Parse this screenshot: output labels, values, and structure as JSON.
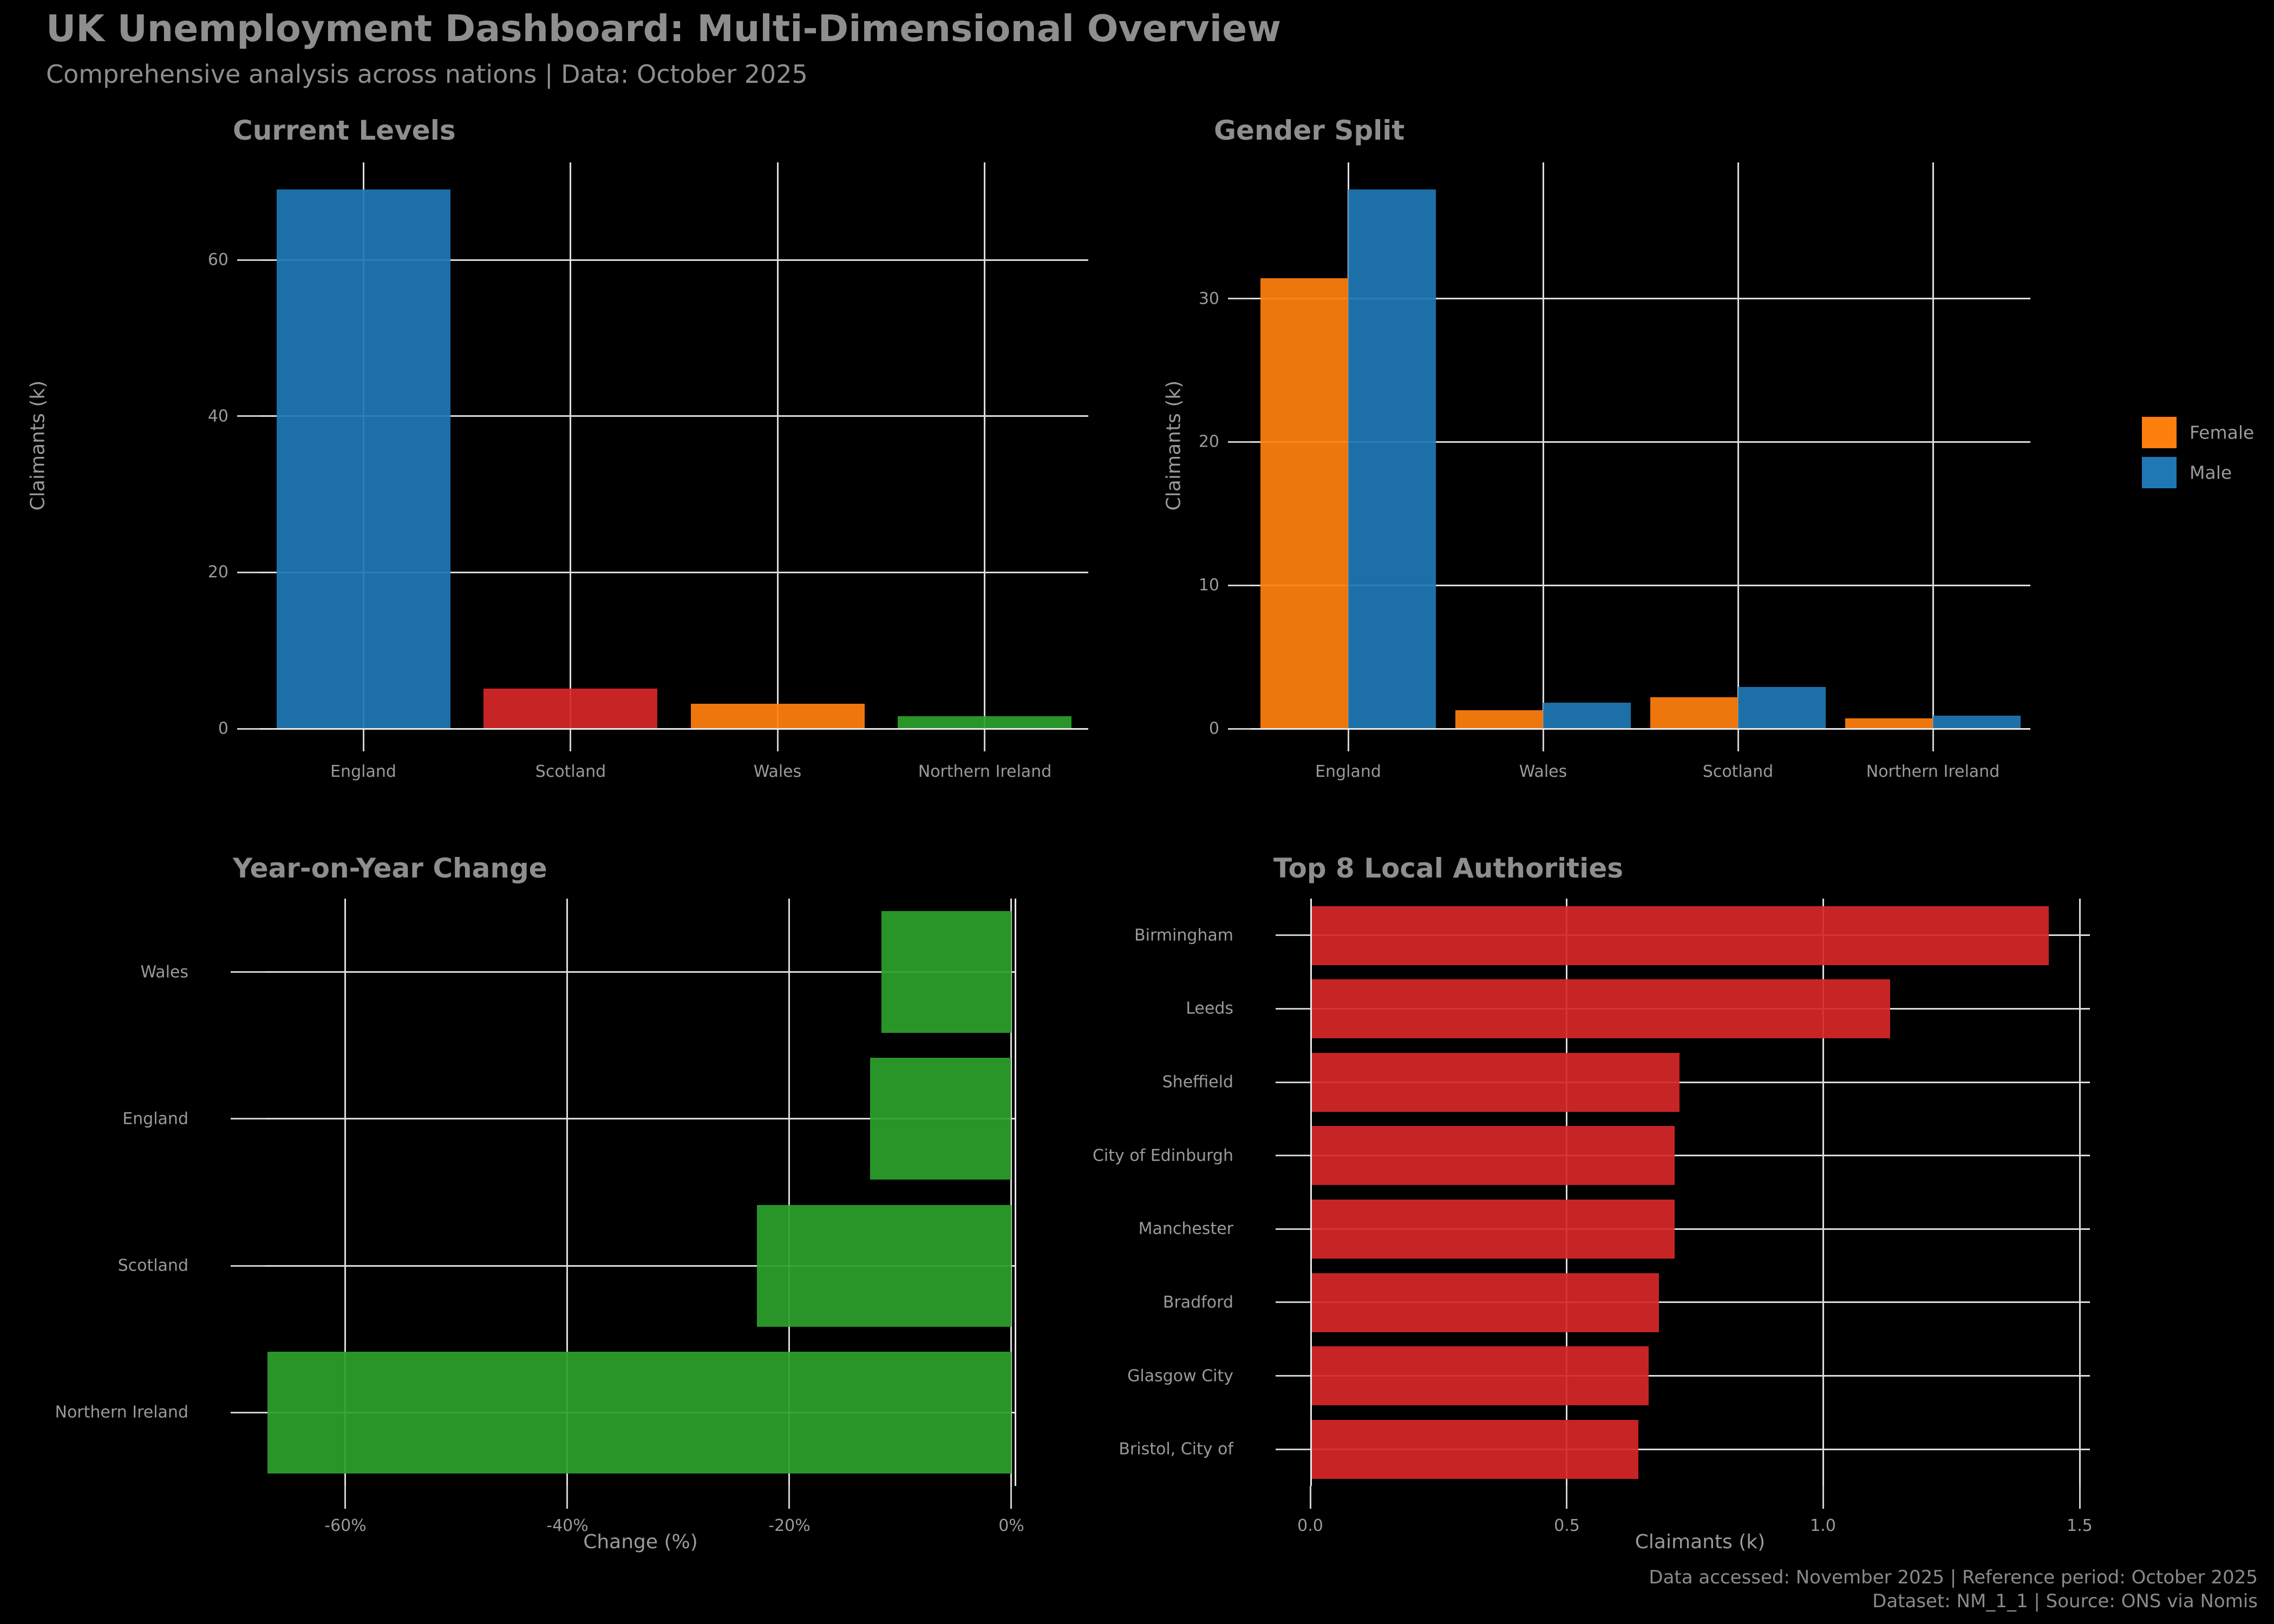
{
  "header": {
    "title": "UK Unemployment Dashboard: Multi-Dimensional Overview",
    "subtitle": "Comprehensive analysis across nations | Data: October 2025"
  },
  "footer": {
    "line1": "Data accessed: November 2025 | Reference period: October 2025",
    "line2": "Dataset: NM_1_1 | Source: ONS via Nomis"
  },
  "colors": {
    "background": "#000000",
    "text": "#8e8e8e",
    "grid": "#dcdcdc",
    "blue": "#1f77b4",
    "orange": "#ff7f0e",
    "red": "#d62728",
    "green": "#2ca02c"
  },
  "legend": {
    "items": [
      {
        "label": "Female",
        "color": "#ff7f0e"
      },
      {
        "label": "Male",
        "color": "#1f77b4"
      }
    ],
    "position": "right"
  },
  "chart_data": [
    {
      "id": "current-levels",
      "type": "bar",
      "title": "Current Levels",
      "ylabel": "Claimants (k)",
      "categories": [
        "England",
        "Scotland",
        "Wales",
        "Northern Ireland"
      ],
      "values": [
        69.0,
        5.1,
        3.2,
        1.6
      ],
      "bar_colors": [
        "#1f77b4",
        "#d62728",
        "#ff7f0e",
        "#2ca02c"
      ],
      "yticks": [
        0,
        20,
        40,
        60
      ],
      "ylim": [
        0,
        72.5
      ],
      "grid": true
    },
    {
      "id": "gender-split",
      "type": "bar",
      "title": "Gender Split",
      "ylabel": "Claimants (k)",
      "categories": [
        "England",
        "Wales",
        "Scotland",
        "Northern Ireland"
      ],
      "series": [
        {
          "name": "Female",
          "color": "#ff7f0e",
          "values": [
            31.4,
            1.3,
            2.2,
            0.7
          ]
        },
        {
          "name": "Male",
          "color": "#1f77b4",
          "values": [
            37.6,
            1.8,
            2.9,
            0.9
          ]
        }
      ],
      "yticks": [
        0,
        10,
        20,
        30
      ],
      "ylim": [
        0,
        39.5
      ],
      "legend_position": "right",
      "grid": true
    },
    {
      "id": "yoy-change",
      "type": "barh",
      "title": "Year-on-Year Change",
      "xlabel": "Change (%)",
      "categories": [
        "Wales",
        "England",
        "Scotland",
        "Northern Ireland"
      ],
      "values": [
        -11.7,
        -12.7,
        -22.9,
        -67.0
      ],
      "bar_color": "#2ca02c",
      "xticks": [
        {
          "v": -60,
          "label": "-60%"
        },
        {
          "v": -40,
          "label": "-40%"
        },
        {
          "v": -20,
          "label": "-20%"
        },
        {
          "v": 0,
          "label": "0%"
        }
      ],
      "xlim": [
        -67.2,
        0.35
      ],
      "grid": true
    },
    {
      "id": "top-authorities",
      "type": "barh",
      "title": "Top 8 Local Authorities",
      "xlabel": "Claimants (k)",
      "categories": [
        "Birmingham",
        "Leeds",
        "Sheffield",
        "City of Edinburgh",
        "Manchester",
        "Bradford",
        "Glasgow City",
        "Bristol, City of"
      ],
      "values": [
        1.44,
        1.13,
        0.72,
        0.71,
        0.71,
        0.68,
        0.66,
        0.64
      ],
      "bar_color": "#d62728",
      "xticks": [
        {
          "v": 0,
          "label": "0.0"
        },
        {
          "v": 0.5,
          "label": "0.5"
        },
        {
          "v": 1.0,
          "label": "1.0"
        },
        {
          "v": 1.5,
          "label": "1.5"
        }
      ],
      "xlim": [
        0,
        1.52
      ],
      "grid": true
    }
  ]
}
